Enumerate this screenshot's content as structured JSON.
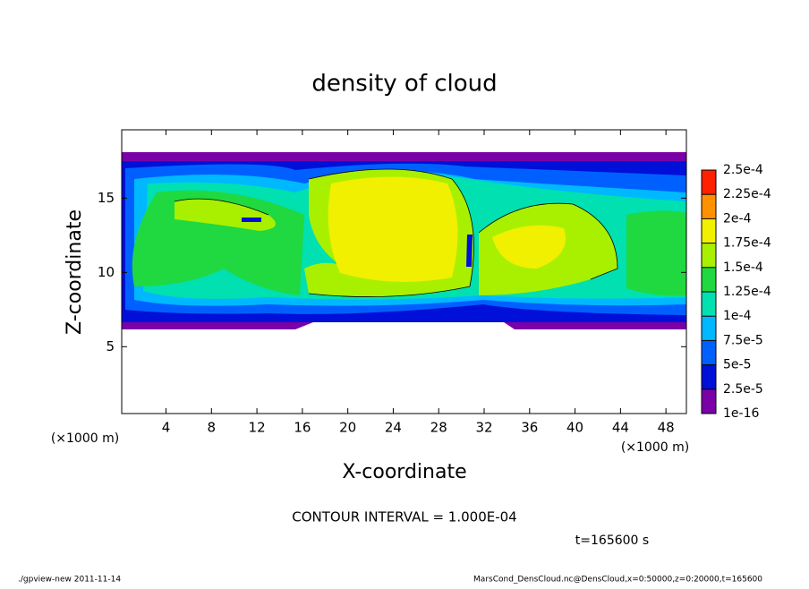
{
  "chart_data": {
    "type": "contour",
    "title": "density of cloud",
    "x_label": "X-coordinate",
    "y_label": "Z-coordinate",
    "x_unit": "(×1000 m)",
    "y_unit": "(×1000 m)",
    "xlim": [
      0.1,
      49.8
    ],
    "xticks": [
      4,
      8,
      12,
      16,
      20,
      24,
      28,
      32,
      36,
      40,
      44,
      48
    ],
    "ylim": [
      0.5,
      19.6
    ],
    "yticks": [
      5,
      10,
      15
    ],
    "colorbar": {
      "levels": [
        {
          "value": 1e-16,
          "label": "1e-16"
        },
        {
          "value": 2.5e-05,
          "label": "2.5e-5"
        },
        {
          "value": 5e-05,
          "label": "5e-5"
        },
        {
          "value": 7.5e-05,
          "label": "7.5e-5"
        },
        {
          "value": 0.0001,
          "label": "1e-4"
        },
        {
          "value": 0.000125,
          "label": "1.25e-4"
        },
        {
          "value": 0.00015,
          "label": "1.5e-4"
        },
        {
          "value": 0.000175,
          "label": "1.75e-4"
        },
        {
          "value": 0.0002,
          "label": "2e-4"
        },
        {
          "value": 0.000225,
          "label": "2.25e-4"
        },
        {
          "value": 0.00025,
          "label": "2.5e-4"
        }
      ],
      "colors": [
        "#7a00a8",
        "#0010d8",
        "#0060ff",
        "#00b8ff",
        "#00e0b0",
        "#20d840",
        "#a8f000",
        "#f0f000",
        "#ff9000",
        "#ff2000"
      ]
    },
    "annotation": "CONTOUR INTERVAL = 1.000E-04",
    "time_label": "t=165600 s",
    "footer_left": "./gpview-new  2011-11-14",
    "footer_right": "MarsCond_DensCloud.nc@DensCloud,x=0:50000,z=0:20000,t=165600"
  }
}
